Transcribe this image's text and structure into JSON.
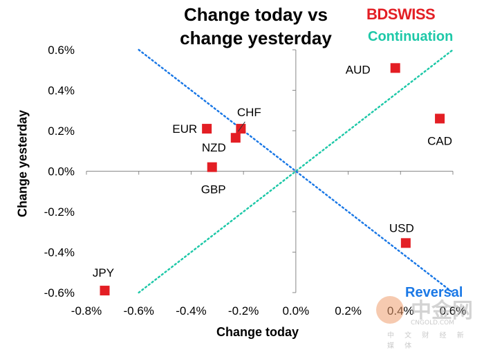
{
  "brand": "BDSWISS",
  "watermark": {
    "name": "中金网",
    "site": "CNGOLD.COM",
    "subtitle": "中 文 财 经 新 媒 体"
  },
  "colors": {
    "marker": "#e31e24",
    "continuation_line": "#1ec8a8",
    "reversal_line": "#1a78e6",
    "brand": "#e31e24"
  },
  "chart_data": {
    "type": "scatter",
    "title": "Change today vs\nchange yesterday",
    "xlabel": "Change today",
    "ylabel": "Change yesterday",
    "xlim": [
      -0.8,
      0.6
    ],
    "ylim": [
      -0.6,
      0.6
    ],
    "x_ticks": [
      "-0.8%",
      "-0.6%",
      "-0.4%",
      "-0.2%",
      "0.0%",
      "0.2%",
      "0.4%",
      "0.6%"
    ],
    "y_ticks": [
      "0.6%",
      "0.4%",
      "0.2%",
      "0.0%",
      "-0.2%",
      "-0.4%",
      "-0.6%"
    ],
    "grid": false,
    "annotations": {
      "continuation": "Continuation",
      "reversal": "Reversal"
    },
    "reference_lines": [
      {
        "name": "Continuation",
        "x": [
          -0.6,
          0.6
        ],
        "y": [
          -0.6,
          0.6
        ]
      },
      {
        "name": "Reversal",
        "x": [
          -0.6,
          0.6
        ],
        "y": [
          0.6,
          -0.6
        ]
      }
    ],
    "points": [
      {
        "label": "AUD",
        "x": 0.38,
        "y": 0.51
      },
      {
        "label": "CAD",
        "x": 0.55,
        "y": 0.26
      },
      {
        "label": "CHF",
        "x": -0.21,
        "y": 0.21
      },
      {
        "label": "EUR",
        "x": -0.34,
        "y": 0.21
      },
      {
        "label": "NZD",
        "x": -0.23,
        "y": 0.165
      },
      {
        "label": "GBP",
        "x": -0.32,
        "y": 0.02
      },
      {
        "label": "USD",
        "x": 0.42,
        "y": -0.355
      },
      {
        "label": "JPY",
        "x": -0.73,
        "y": -0.59
      }
    ]
  }
}
